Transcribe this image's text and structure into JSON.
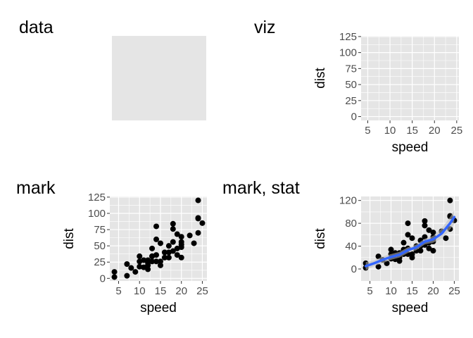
{
  "panels": [
    {
      "id": "data",
      "title": "data"
    },
    {
      "id": "viz",
      "title": "viz"
    },
    {
      "id": "mark",
      "title": "mark"
    },
    {
      "id": "mark-stat",
      "title": "mark, stat"
    }
  ],
  "colors": {
    "panel_background": "#e5e5e5",
    "grid": "#ffffff",
    "points": "#000000",
    "smooth_line": "#3366ff",
    "smooth_band": "#bdbdbd"
  },
  "chart_data": [
    {
      "id": "data",
      "type": "blank",
      "title": "data"
    },
    {
      "id": "viz",
      "type": "scatter",
      "title": "viz",
      "xlabel": "speed",
      "ylabel": "dist",
      "xlim": [
        3.5,
        25.5
      ],
      "ylim": [
        -6,
        126
      ],
      "x_ticks": [
        5,
        10,
        15,
        20,
        25
      ],
      "y_ticks": [
        0,
        25,
        50,
        75,
        100,
        125
      ],
      "grid": true,
      "points": []
    },
    {
      "id": "mark",
      "type": "scatter",
      "title": "mark",
      "xlabel": "speed",
      "ylabel": "dist",
      "xlim": [
        2.9,
        26.1
      ],
      "ylim": [
        -4,
        126
      ],
      "x_ticks": [
        5,
        10,
        15,
        20,
        25
      ],
      "y_ticks": [
        0,
        25,
        50,
        75,
        100,
        125
      ],
      "grid": true,
      "points": [
        [
          4,
          2
        ],
        [
          4,
          10
        ],
        [
          7,
          4
        ],
        [
          7,
          22
        ],
        [
          8,
          16
        ],
        [
          9,
          10
        ],
        [
          10,
          18
        ],
        [
          10,
          26
        ],
        [
          10,
          34
        ],
        [
          11,
          17
        ],
        [
          11,
          28
        ],
        [
          12,
          14
        ],
        [
          12,
          20
        ],
        [
          12,
          24
        ],
        [
          12,
          28
        ],
        [
          13,
          26
        ],
        [
          13,
          34
        ],
        [
          13,
          34
        ],
        [
          13,
          46
        ],
        [
          14,
          26
        ],
        [
          14,
          36
        ],
        [
          14,
          60
        ],
        [
          14,
          80
        ],
        [
          15,
          20
        ],
        [
          15,
          26
        ],
        [
          15,
          54
        ],
        [
          16,
          32
        ],
        [
          16,
          40
        ],
        [
          17,
          32
        ],
        [
          17,
          40
        ],
        [
          17,
          50
        ],
        [
          18,
          42
        ],
        [
          18,
          56
        ],
        [
          18,
          76
        ],
        [
          18,
          84
        ],
        [
          19,
          36
        ],
        [
          19,
          46
        ],
        [
          19,
          68
        ],
        [
          20,
          32
        ],
        [
          20,
          48
        ],
        [
          20,
          52
        ],
        [
          20,
          56
        ],
        [
          20,
          64
        ],
        [
          22,
          66
        ],
        [
          23,
          54
        ],
        [
          24,
          70
        ],
        [
          24,
          92
        ],
        [
          24,
          93
        ],
        [
          24,
          120
        ],
        [
          25,
          85
        ]
      ]
    },
    {
      "id": "mark-stat",
      "type": "scatter",
      "title": "mark, stat",
      "xlabel": "speed",
      "ylabel": "dist",
      "xlim": [
        2.9,
        26.1
      ],
      "ylim": [
        -21,
        127
      ],
      "x_ticks": [
        5,
        10,
        15,
        20,
        25
      ],
      "y_ticks": [
        0,
        40,
        80,
        120
      ],
      "grid": true,
      "points": [
        [
          4,
          2
        ],
        [
          4,
          10
        ],
        [
          7,
          4
        ],
        [
          7,
          22
        ],
        [
          8,
          16
        ],
        [
          9,
          10
        ],
        [
          10,
          18
        ],
        [
          10,
          26
        ],
        [
          10,
          34
        ],
        [
          11,
          17
        ],
        [
          11,
          28
        ],
        [
          12,
          14
        ],
        [
          12,
          20
        ],
        [
          12,
          24
        ],
        [
          12,
          28
        ],
        [
          13,
          26
        ],
        [
          13,
          34
        ],
        [
          13,
          34
        ],
        [
          13,
          46
        ],
        [
          14,
          26
        ],
        [
          14,
          36
        ],
        [
          14,
          60
        ],
        [
          14,
          80
        ],
        [
          15,
          20
        ],
        [
          15,
          26
        ],
        [
          15,
          54
        ],
        [
          16,
          32
        ],
        [
          16,
          40
        ],
        [
          17,
          32
        ],
        [
          17,
          40
        ],
        [
          17,
          50
        ],
        [
          18,
          42
        ],
        [
          18,
          56
        ],
        [
          18,
          76
        ],
        [
          18,
          84
        ],
        [
          19,
          36
        ],
        [
          19,
          46
        ],
        [
          19,
          68
        ],
        [
          20,
          32
        ],
        [
          20,
          48
        ],
        [
          20,
          52
        ],
        [
          20,
          56
        ],
        [
          20,
          64
        ],
        [
          22,
          66
        ],
        [
          23,
          54
        ],
        [
          24,
          70
        ],
        [
          24,
          92
        ],
        [
          24,
          93
        ],
        [
          24,
          120
        ],
        [
          25,
          85
        ]
      ],
      "smooth": {
        "method": "loess",
        "x": [
          4,
          6,
          8,
          10,
          12,
          14,
          16,
          17,
          18,
          20,
          22,
          24,
          25
        ],
        "y": [
          5,
          10,
          16,
          21,
          25,
          33,
          38,
          43,
          48,
          52,
          62,
          80,
          91
        ],
        "lower": [
          -2,
          5,
          10,
          16,
          20,
          28,
          33,
          38,
          43,
          46,
          53,
          69,
          79
        ],
        "upper": [
          12,
          15,
          22,
          26,
          30,
          38,
          43,
          48,
          53,
          58,
          71,
          91,
          103
        ]
      }
    }
  ]
}
